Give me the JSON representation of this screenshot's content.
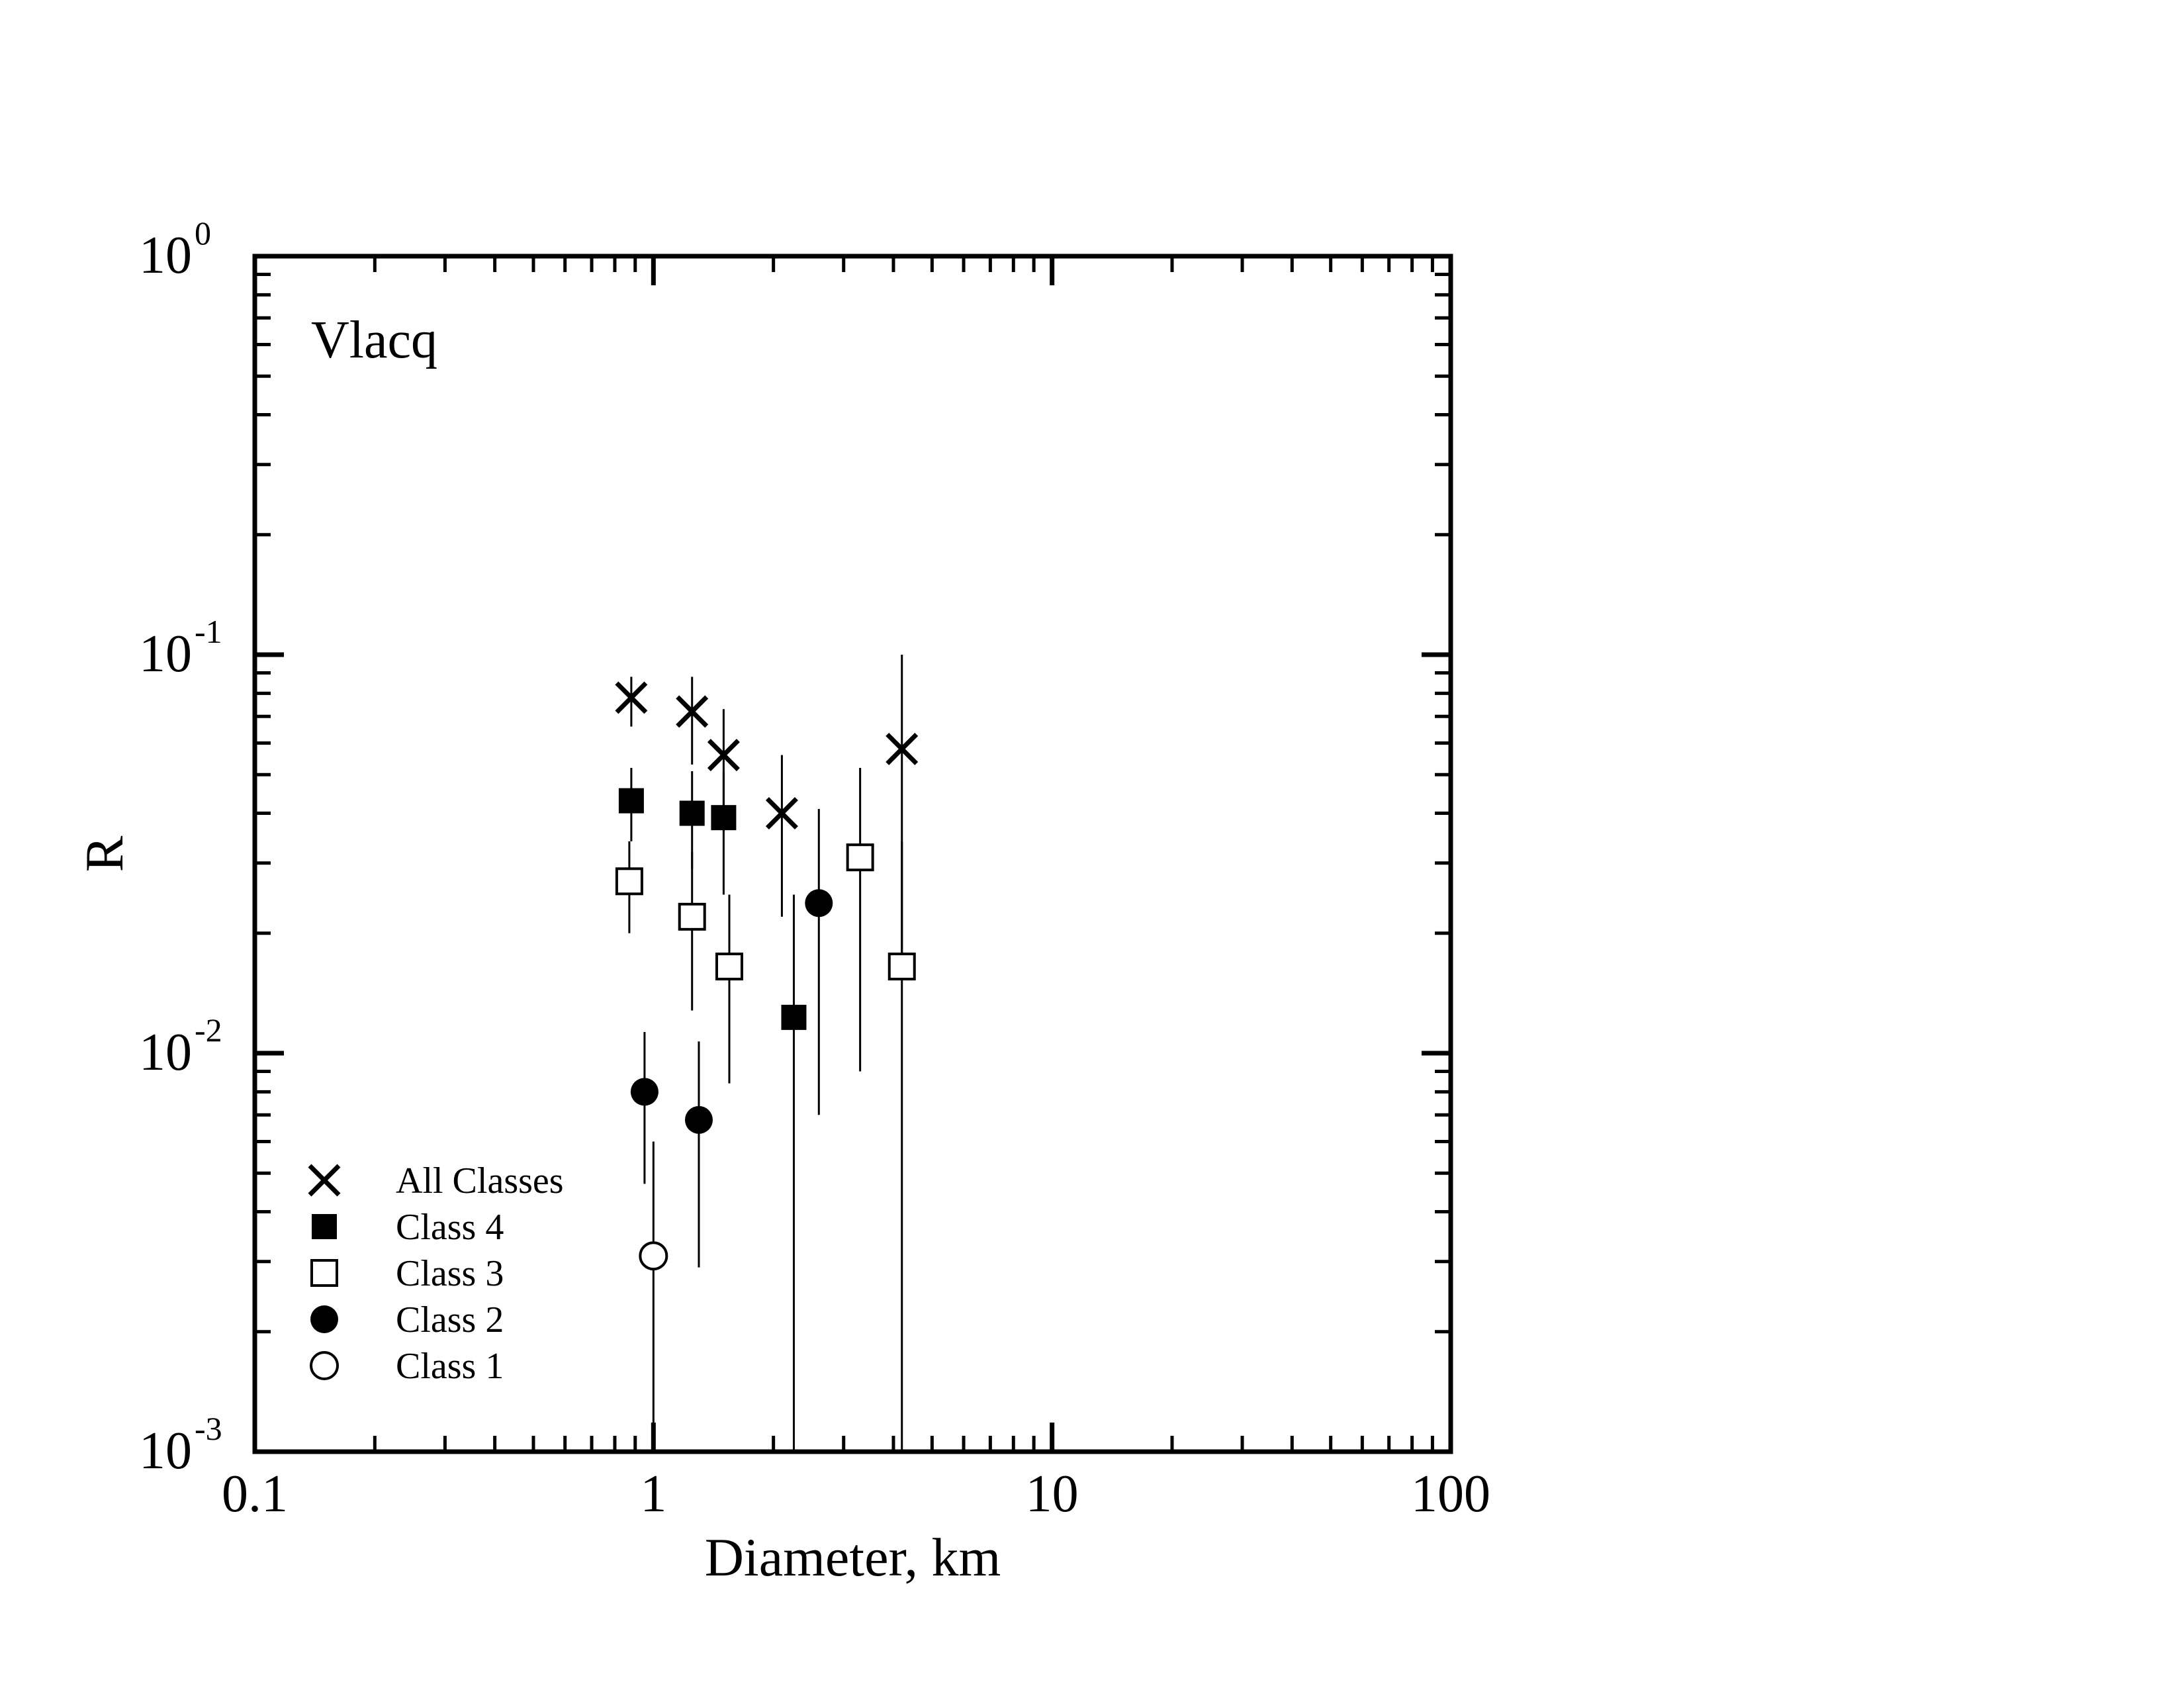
{
  "chart_data": {
    "type": "scatter",
    "title": "",
    "annotation": "Vlacq",
    "xlabel": "Diameter, km",
    "ylabel": "R",
    "xscale": "log",
    "yscale": "log",
    "xlim": [
      0.1,
      100
    ],
    "ylim": [
      0.001,
      1
    ],
    "grid": false,
    "legend_position": "bottom-left",
    "x_tick_labels": [
      "0.1",
      "1",
      "10",
      "100"
    ],
    "y_tick_labels": [
      {
        "base": "10",
        "exp": "-3",
        "value": 0.001
      },
      {
        "base": "10",
        "exp": "-2",
        "value": 0.01
      },
      {
        "base": "10",
        "exp": "-1",
        "value": 0.1
      },
      {
        "base": "10",
        "exp": "0",
        "value": 1
      }
    ],
    "series": [
      {
        "name": "All Classes",
        "marker": "cross",
        "points": [
          {
            "x": 0.88,
            "y": 0.078,
            "ylo": 0.066,
            "yhi": 0.088
          },
          {
            "x": 1.25,
            "y": 0.072,
            "ylo": 0.053,
            "yhi": 0.088
          },
          {
            "x": 1.5,
            "y": 0.056,
            "ylo": 0.036,
            "yhi": 0.073
          },
          {
            "x": 2.1,
            "y": 0.04,
            "ylo": 0.022,
            "yhi": 0.056
          },
          {
            "x": 4.2,
            "y": 0.058,
            "ylo": 0.016,
            "yhi": 0.1
          }
        ]
      },
      {
        "name": "Class 4",
        "marker": "filled-square",
        "points": [
          {
            "x": 0.88,
            "y": 0.043,
            "ylo": 0.034,
            "yhi": 0.052
          },
          {
            "x": 1.25,
            "y": 0.04,
            "ylo": 0.029,
            "yhi": 0.051
          },
          {
            "x": 1.5,
            "y": 0.039,
            "ylo": 0.025,
            "yhi": 0.051
          },
          {
            "x": 2.25,
            "y": 0.0123,
            "ylo": 0.001,
            "yhi": 0.025
          }
        ]
      },
      {
        "name": "Class 3",
        "marker": "open-square",
        "points": [
          {
            "x": 0.87,
            "y": 0.027,
            "ylo": 0.02,
            "yhi": 0.034
          },
          {
            "x": 1.25,
            "y": 0.022,
            "ylo": 0.0128,
            "yhi": 0.032
          },
          {
            "x": 1.55,
            "y": 0.0165,
            "ylo": 0.0084,
            "yhi": 0.025
          },
          {
            "x": 3.3,
            "y": 0.031,
            "ylo": 0.009,
            "yhi": 0.052
          },
          {
            "x": 4.2,
            "y": 0.0165,
            "ylo": 0.001,
            "yhi": 0.034
          }
        ]
      },
      {
        "name": "Class 2",
        "marker": "filled-circle",
        "points": [
          {
            "x": 0.95,
            "y": 0.008,
            "ylo": 0.0047,
            "yhi": 0.0113
          },
          {
            "x": 1.3,
            "y": 0.0068,
            "ylo": 0.0029,
            "yhi": 0.0107
          },
          {
            "x": 2.6,
            "y": 0.0238,
            "ylo": 0.007,
            "yhi": 0.041
          }
        ]
      },
      {
        "name": "Class 1",
        "marker": "open-circle",
        "points": [
          {
            "x": 1.0,
            "y": 0.0031,
            "ylo": 0.001,
            "yhi": 0.006
          }
        ]
      }
    ]
  }
}
